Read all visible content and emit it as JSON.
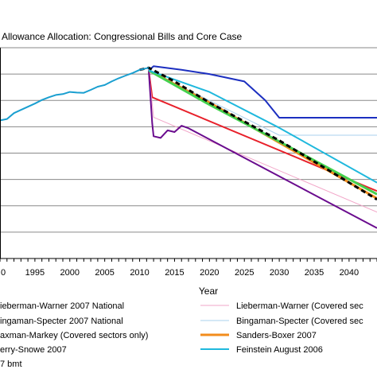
{
  "chart_data": {
    "type": "line",
    "title": "Allowance Allocation: Congressional Bills and Core Case",
    "xlabel": "Year",
    "ylabel": "",
    "xlim": [
      1990,
      2044
    ],
    "ylim": [
      0,
      1
    ],
    "x_ticks": [
      "0",
      "1995",
      "2000",
      "2005",
      "2010",
      "2015",
      "2020",
      "2025",
      "2030",
      "2035",
      "2040"
    ],
    "y_gridlines": 9,
    "grid": true,
    "legend_position": "bottom",
    "series": [
      {
        "name": "ieberman-Warner 2007 National",
        "color": "#e8202a",
        "width": 2,
        "dash": "",
        "points": [
          [
            2011.3,
            0.892
          ],
          [
            2011.8,
            0.765
          ],
          [
            2044,
            0.32
          ]
        ]
      },
      {
        "name": "Lieberman-Warner (Covered sec",
        "color": "#f2a6c8",
        "width": 1,
        "dash": "",
        "points": [
          [
            2011.3,
            0.892
          ],
          [
            2012,
            0.67
          ],
          [
            2044,
            0.22
          ]
        ]
      },
      {
        "name": "ingaman-Specter 2007 National",
        "color": "#1c2fc0",
        "width": 2,
        "dash": "",
        "points": [
          [
            2011.3,
            0.892
          ],
          [
            2012,
            0.912
          ],
          [
            2016,
            0.895
          ],
          [
            2020,
            0.875
          ],
          [
            2025,
            0.84
          ],
          [
            2028,
            0.75
          ],
          [
            2030,
            0.668
          ],
          [
            2044,
            0.668
          ]
        ]
      },
      {
        "name": "Bingaman-Specter (Covered sec",
        "color": "#aad0ec",
        "width": 1,
        "dash": "",
        "points": [
          [
            2011.3,
            0.892
          ],
          [
            2020,
            0.75
          ],
          [
            2030,
            0.585
          ],
          [
            2044,
            0.585
          ]
        ]
      },
      {
        "name": "axman-Markey (Covered sectors only)",
        "color": "#6a0c8e",
        "width": 2,
        "dash": "",
        "points": [
          [
            2011.3,
            0.892
          ],
          [
            2011.8,
            0.64
          ],
          [
            2012,
            0.58
          ],
          [
            2013,
            0.572
          ],
          [
            2014,
            0.608
          ],
          [
            2015,
            0.6
          ],
          [
            2016,
            0.63
          ],
          [
            2017,
            0.618
          ],
          [
            2044,
            0.144
          ]
        ]
      },
      {
        "name": "Sanders-Boxer 2007",
        "color": "#f28c1c",
        "width": 3,
        "dash": "",
        "points": [
          [
            2011.3,
            0.892
          ],
          [
            2020,
            0.74
          ],
          [
            2030,
            0.55
          ],
          [
            2044,
            0.285
          ]
        ]
      },
      {
        "name": "erry-Snowe 2007",
        "color": "#44d14e",
        "width": 3,
        "dash": "",
        "points": [
          [
            2011.3,
            0.892
          ],
          [
            2020,
            0.73
          ],
          [
            2030,
            0.555
          ],
          [
            2044,
            0.305
          ]
        ]
      },
      {
        "name": "Feinstein August 2006",
        "color": "#1fb8dd",
        "width": 2,
        "dash": "",
        "points": [
          [
            2011.3,
            0.892
          ],
          [
            2020,
            0.79
          ],
          [
            2030,
            0.62
          ],
          [
            2044,
            0.36
          ]
        ]
      },
      {
        "name": "7 bmt",
        "color": "#000000",
        "width": 3,
        "dash": "6,4",
        "points": [
          [
            2010,
            0.895
          ],
          [
            2011.3,
            0.905
          ],
          [
            2015,
            0.84
          ],
          [
            2020,
            0.74
          ],
          [
            2025,
            0.65
          ],
          [
            2030,
            0.56
          ],
          [
            2035,
            0.46
          ],
          [
            2040,
            0.36
          ],
          [
            2044,
            0.28
          ]
        ]
      },
      {
        "name": "",
        "color": "#1a9fd0",
        "width": 2,
        "dash": "",
        "points": [
          [
            1990,
            0.655
          ],
          [
            1991,
            0.662
          ],
          [
            1992,
            0.69
          ],
          [
            1993,
            0.705
          ],
          [
            1994,
            0.72
          ],
          [
            1995,
            0.735
          ],
          [
            1996,
            0.752
          ],
          [
            1997,
            0.765
          ],
          [
            1998,
            0.776
          ],
          [
            1999,
            0.78
          ],
          [
            2000,
            0.79
          ],
          [
            2001,
            0.787
          ],
          [
            2002,
            0.786
          ],
          [
            2003,
            0.8
          ],
          [
            2004,
            0.815
          ],
          [
            2005,
            0.823
          ],
          [
            2006,
            0.84
          ],
          [
            2007,
            0.855
          ],
          [
            2008,
            0.868
          ],
          [
            2009,
            0.88
          ],
          [
            2010,
            0.895
          ],
          [
            2011.3,
            0.905
          ]
        ]
      }
    ]
  }
}
